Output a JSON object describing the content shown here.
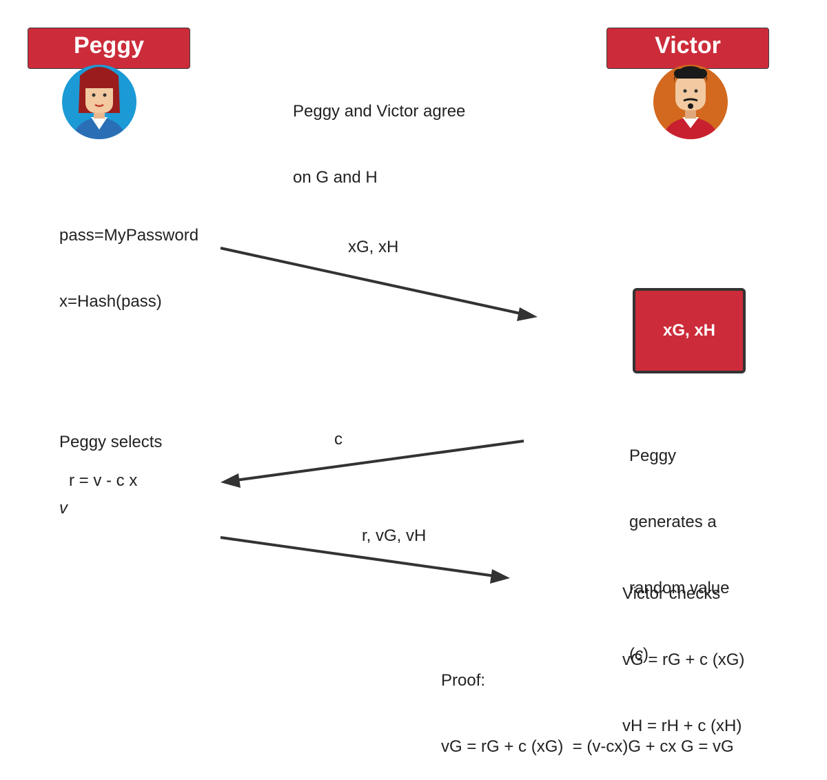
{
  "actors": {
    "prover": {
      "name": "Peggy"
    },
    "verifier": {
      "name": "Victor"
    }
  },
  "intro": {
    "line1": "Peggy and Victor agree",
    "line2": "on G and H"
  },
  "peggy_setup": {
    "line1": "pass=MyPassword",
    "line2": "x=Hash(pass)"
  },
  "messages": {
    "first": "xG, xH",
    "challenge": "c",
    "response": "r, vG, vH"
  },
  "victor_store": {
    "label": "xG, xH"
  },
  "peggy_select": {
    "line1": "Peggy selects",
    "line2": "v"
  },
  "peggy_compute": {
    "formula": "r = v - c x"
  },
  "challenge_note": {
    "line1": "Peggy",
    "line2": "generates a",
    "line3": "random value",
    "line4_open": "(",
    "line4_var": "c",
    "line4_close": ")"
  },
  "victor_check": {
    "line1": "Victor checks",
    "line2": "vG = rG + c (xG)",
    "line3": "vH = rH + c (xH)"
  },
  "proof": {
    "line1": "Proof:",
    "line2": "vG = rG + c (xG)  = (v-cx)G + cx G = vG"
  },
  "colors": {
    "accent_red": "#cc2c3a",
    "peggy_avatar_bg": "#1b9ad6",
    "victor_avatar_bg": "#d2691e",
    "arrow": "#333333"
  }
}
